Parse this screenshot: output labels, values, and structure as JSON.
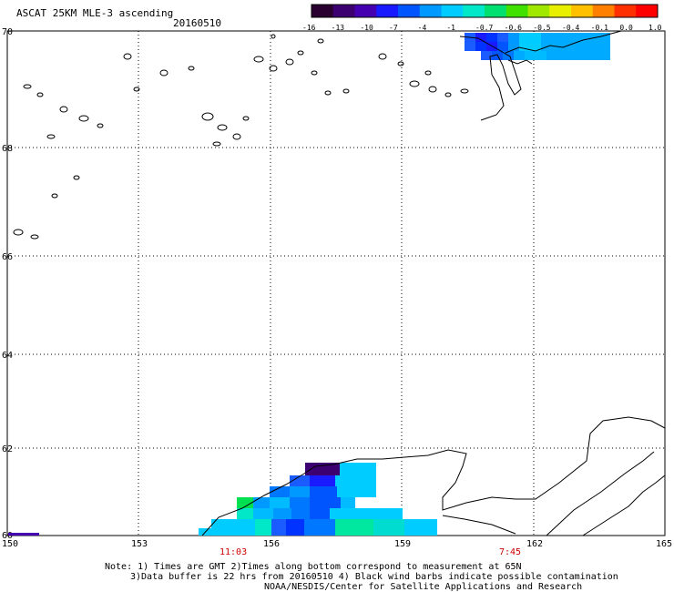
{
  "header": {
    "title": "ASCAT 25KM MLE-3 ascending",
    "date": "20160510"
  },
  "colorbar": {
    "labels": [
      "-16",
      "-13",
      "-10",
      "-7",
      "-4",
      "-1",
      "-0.7",
      "-0.6",
      "-0.5",
      "-0.4",
      "-0.1",
      "0.0",
      "1.0"
    ],
    "colors": [
      "#2a0030",
      "#3c0070",
      "#4400b0",
      "#1a1aff",
      "#0055ff",
      "#0099ff",
      "#00ccff",
      "#00e8c8",
      "#00e070",
      "#40e000",
      "#a0e800",
      "#e8f000",
      "#ffc000",
      "#ff8000",
      "#ff3000",
      "#ff0000"
    ]
  },
  "map": {
    "lat_labels": [
      "70",
      "68",
      "66",
      "64",
      "62",
      "60"
    ],
    "lon_labels": [
      "150",
      "153",
      "156",
      "159",
      "162",
      "165"
    ]
  },
  "pass_times": [
    "11:03",
    "7:45"
  ],
  "notes": [
    "Note: 1) Times are GMT 2)Times along bottom correspond to measurement at 65N",
    "3)Data buffer is 22 hrs from 20160510 4) Black wind barbs indicate possible contamination",
    "NOAA/NESDIS/Center for Satellite Applications and Research"
  ]
}
